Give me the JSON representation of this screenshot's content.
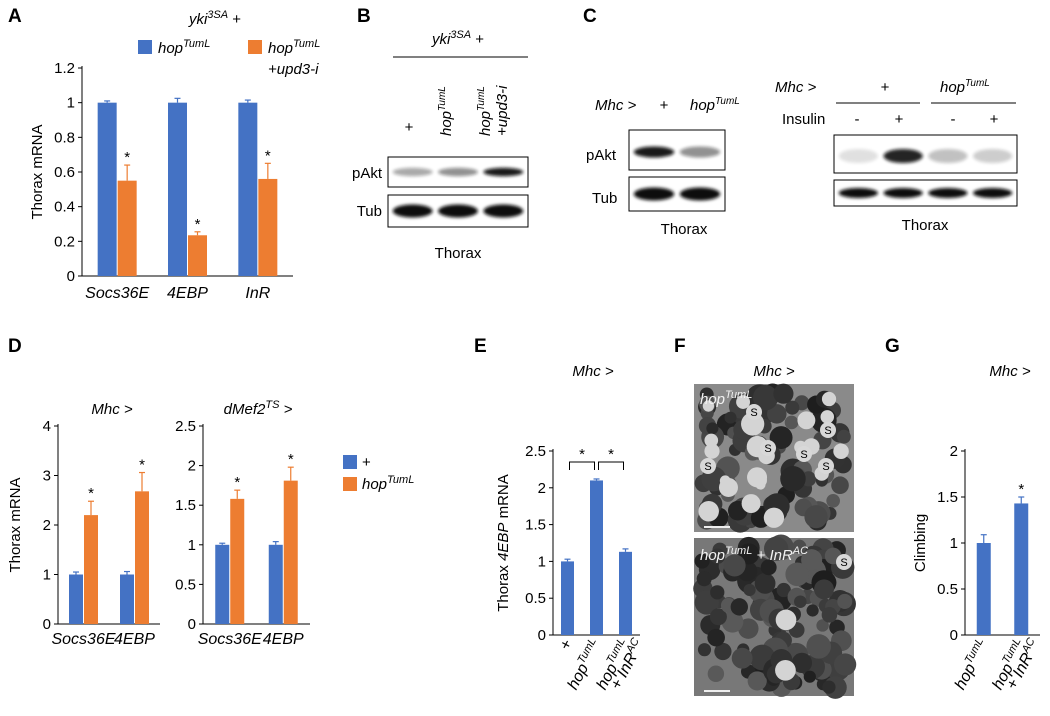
{
  "colors": {
    "blue": "#4472C4",
    "orange": "#ED7D31",
    "black": "#000000"
  },
  "panels": {
    "A": {
      "label": "A",
      "title": "yki",
      "title_sup": "3SA",
      "title_suffix": " +"
    },
    "B": {
      "label": "B",
      "header": "yki",
      "header_sup": "3SA",
      "header_suffix": " +",
      "lanes": [
        {
          "main": "+",
          "sup": ""
        },
        {
          "main": "hop",
          "sup": "TumL"
        },
        {
          "main": "hop",
          "sup": "TumL",
          "extra": "+upd3-i"
        }
      ],
      "rows": [
        "pAkt",
        "Tub"
      ],
      "footer": "Thorax",
      "bands_pAkt": [
        0.35,
        0.45,
        0.95
      ],
      "bands_Tub": [
        1,
        1,
        1
      ]
    },
    "C": {
      "label": "C",
      "left": {
        "genotype_label": "Mhc >",
        "lanes": [
          {
            "main": "+",
            "sup": ""
          },
          {
            "main": "hop",
            "sup": "TumL"
          }
        ],
        "rows": [
          "pAkt",
          "Tub"
        ],
        "footer": "Thorax",
        "bands_pAkt": [
          0.95,
          0.45
        ],
        "bands_Tub": [
          1,
          1
        ]
      },
      "right": {
        "genotype_label": "Mhc >",
        "groups": [
          {
            "main": "+",
            "sup": ""
          },
          {
            "main": "hop",
            "sup": "TumL"
          }
        ],
        "insulin_label": "Insulin",
        "insulin": [
          "-",
          "+",
          "-",
          "+"
        ],
        "footer": "Thorax",
        "bands_top": [
          0.12,
          0.9,
          0.25,
          0.2
        ],
        "bands_bottom": [
          1,
          1,
          1,
          1
        ]
      }
    },
    "D": {
      "label": "D"
    },
    "E": {
      "label": "E"
    },
    "F": {
      "label": "F",
      "title": "Mhc >",
      "top_label": {
        "main": "hop",
        "sup": "TumL"
      },
      "bottom_label": {
        "main": "hop",
        "sup": "TumL",
        "extra": " + InR",
        "sup2": "AC"
      },
      "s_marker": "S"
    },
    "G": {
      "label": "G"
    }
  },
  "chart_data": [
    {
      "id": "A",
      "type": "bar",
      "title": "yki3SA +",
      "categories": [
        "Socs36E",
        "4EBP",
        "InR"
      ],
      "series": [
        {
          "name": "hopTumL",
          "name_main": "hop",
          "name_sup": "TumL",
          "color": "#4472C4",
          "values": [
            1.0,
            1.0,
            1.0
          ],
          "errors": [
            0.01,
            0.025,
            0.015
          ],
          "significant": [
            false,
            false,
            false
          ]
        },
        {
          "name": "hopTumL +upd3-i",
          "name_main": "hop",
          "name_sup": "TumL",
          "name_extra": "+upd3-i",
          "color": "#ED7D31",
          "values": [
            0.55,
            0.235,
            0.56
          ],
          "errors": [
            0.09,
            0.02,
            0.09
          ],
          "significant": [
            true,
            true,
            true
          ]
        }
      ],
      "ylabel": "Thorax mRNA",
      "xlabel": "",
      "ylim": [
        0,
        1.2
      ],
      "yticks": [
        0,
        0.2,
        0.4,
        0.6,
        0.8,
        1,
        1.2
      ],
      "grid": false,
      "legend": "top"
    },
    {
      "id": "D1",
      "type": "bar",
      "title": "Mhc >",
      "categories": [
        "Socs36E",
        "4EBP"
      ],
      "series": [
        {
          "name": "+",
          "color": "#4472C4",
          "values": [
            1.0,
            1.0
          ],
          "errors": [
            0.05,
            0.06
          ],
          "significant": [
            false,
            false
          ]
        },
        {
          "name": "hopTumL",
          "color": "#ED7D31",
          "values": [
            2.2,
            2.68
          ],
          "errors": [
            0.28,
            0.38
          ],
          "significant": [
            true,
            true
          ]
        }
      ],
      "ylabel": "Thorax mRNA",
      "xlabel": "",
      "ylim": [
        0,
        4
      ],
      "yticks": [
        0,
        1,
        2,
        3,
        4
      ],
      "grid": false,
      "legend": "right"
    },
    {
      "id": "D2",
      "type": "bar",
      "title": "dMef2TS >",
      "title_main": "dMef2",
      "title_sup": "TS",
      "title_suffix": " >",
      "categories": [
        "Socs36E",
        "4EBP"
      ],
      "series": [
        {
          "name": "+",
          "name_main": "+",
          "name_sup": "",
          "color": "#4472C4",
          "values": [
            1.0,
            1.0
          ],
          "errors": [
            0.02,
            0.04
          ],
          "significant": [
            false,
            false
          ]
        },
        {
          "name": "hopTumL",
          "name_main": "hop",
          "name_sup": "TumL",
          "color": "#ED7D31",
          "values": [
            1.58,
            1.81
          ],
          "errors": [
            0.11,
            0.17
          ],
          "significant": [
            true,
            true
          ]
        }
      ],
      "ylabel": "",
      "xlabel": "",
      "ylim": [
        0,
        2.5
      ],
      "yticks": [
        0,
        0.5,
        1,
        1.5,
        2,
        2.5
      ],
      "grid": false,
      "legend": "right"
    },
    {
      "id": "E",
      "type": "bar",
      "title": "Mhc >",
      "categories": [
        "+",
        "hopTumL",
        "hopTumL + InRAC"
      ],
      "category_parts": [
        {
          "main": "+",
          "sup": ""
        },
        {
          "main": "hop",
          "sup": "TumL"
        },
        {
          "main": "hop",
          "sup": "TumL",
          "extra": "+ InR",
          "sup2": "AC"
        }
      ],
      "series": [
        {
          "name": "",
          "color": "#4472C4",
          "values": [
            1.0,
            2.1,
            1.13
          ],
          "errors": [
            0.03,
            0.02,
            0.04
          ]
        }
      ],
      "comparisons": [
        {
          "from": 0,
          "to": 1,
          "label": "*"
        },
        {
          "from": 1,
          "to": 2,
          "label": "*"
        }
      ],
      "ylabel": "Thorax 4EBP mRNA",
      "ylabel_pre": "Thorax ",
      "ylabel_ital": "4EBP",
      "ylabel_post": " mRNA",
      "xlabel": "",
      "ylim": [
        0,
        2.5
      ],
      "yticks": [
        0,
        0.5,
        1,
        1.5,
        2,
        2.5
      ],
      "grid": false,
      "legend": "none"
    },
    {
      "id": "G",
      "type": "bar",
      "title": "Mhc >",
      "categories": [
        "hopTumL",
        "hopTumL + InRAC"
      ],
      "category_parts": [
        {
          "main": "hop",
          "sup": "TumL"
        },
        {
          "main": "hop",
          "sup": "TumL",
          "extra": "+ InR",
          "sup2": "AC"
        }
      ],
      "series": [
        {
          "name": "",
          "color": "#4472C4",
          "values": [
            1.0,
            1.43
          ],
          "errors": [
            0.09,
            0.07
          ],
          "significant": [
            false,
            true
          ]
        }
      ],
      "ylabel": "Climbing",
      "xlabel": "",
      "ylim": [
        0,
        2
      ],
      "yticks": [
        0,
        0.5,
        1,
        1.5,
        2
      ],
      "grid": false,
      "legend": "none"
    }
  ]
}
